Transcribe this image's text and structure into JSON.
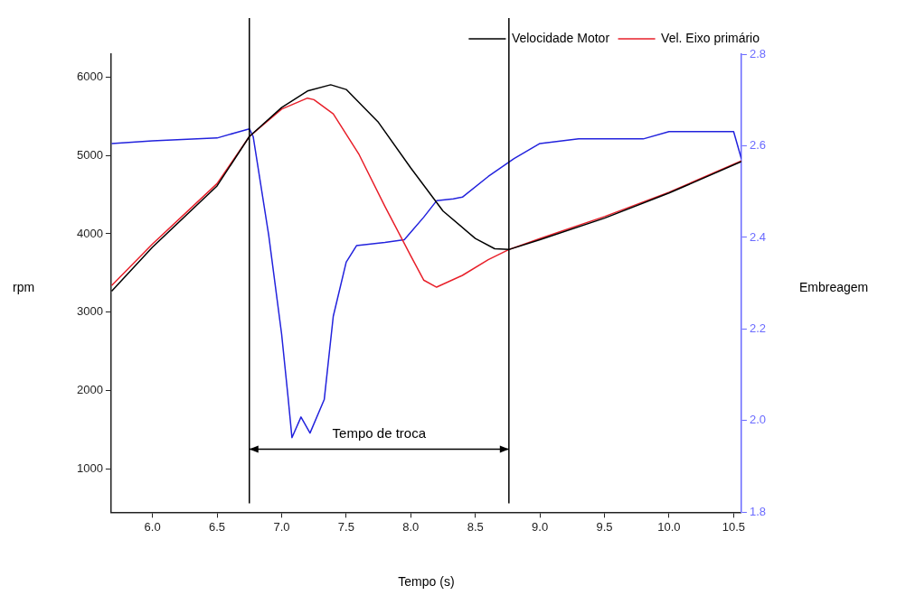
{
  "chart_data": {
    "type": "line",
    "xlabel": "Tempo (s)",
    "ylabel": "rpm",
    "y2label": "Embreagem",
    "xlim": [
      5.68,
      10.56
    ],
    "xticks": [
      {
        "value": 6,
        "label": "6.0"
      },
      6.5,
      {
        "value": 7,
        "label": "7.0"
      },
      7.5,
      {
        "value": 8,
        "label": "8.0"
      },
      8.5,
      {
        "value": 9,
        "label": "9.0"
      },
      9.5,
      {
        "value": 10,
        "label": "10.0"
      },
      10.5
    ],
    "ylim": [
      450,
      6290
    ],
    "yticks": [
      1000,
      2000,
      3000,
      4000,
      5000,
      6000
    ],
    "y2lim": [
      1.8,
      2.8
    ],
    "y2ticks": [
      1.8,
      {
        "value": 2,
        "label": "2.0"
      },
      2.2,
      2.4,
      2.6,
      2.8
    ],
    "grid": false,
    "legend": "top right",
    "marker": "none",
    "line_style": "solid",
    "ref_lines": [
      {
        "axis": "x",
        "value": 6.75,
        "color": "#000000"
      },
      {
        "axis": "x",
        "value": 8.76,
        "color": "#000000"
      }
    ],
    "annotations": [
      "Tempo de troca"
    ],
    "series": [
      {
        "name": "Velocidade Motor",
        "color": "#000000",
        "x": [
          5.684,
          6.0,
          6.5,
          6.75,
          7.0,
          7.2,
          7.38,
          7.5,
          7.75,
          8.0,
          8.25,
          8.5,
          8.65,
          8.76,
          9.0,
          9.5,
          10.0,
          10.56
        ],
        "values": [
          3270,
          3830,
          4610,
          5240,
          5610,
          5820,
          5900,
          5840,
          5420,
          4840,
          4290,
          3940,
          3810,
          3800,
          3925,
          4200,
          4520,
          4920
        ]
      },
      {
        "name": "Vel. Eixo primário",
        "color": "#e8202a",
        "x": [
          5.684,
          6.0,
          6.5,
          6.75,
          7.0,
          7.2,
          7.25,
          7.4,
          7.6,
          7.8,
          8.0,
          8.1,
          8.2,
          8.4,
          8.6,
          8.76,
          9.0,
          9.5,
          10.0,
          10.56
        ],
        "values": [
          3340,
          3870,
          4640,
          5240,
          5590,
          5730,
          5710,
          5530,
          5010,
          4350,
          3720,
          3410,
          3320,
          3470,
          3670,
          3800,
          3940,
          4220,
          4530,
          4930
        ]
      },
      {
        "color": "#2222dd",
        "axis": "y2",
        "x": [
          5.684,
          6.0,
          6.5,
          6.65,
          6.75,
          6.78,
          6.9,
          7.0,
          7.05,
          7.08,
          7.15,
          7.22,
          7.33,
          7.4,
          7.5,
          7.58,
          7.8,
          7.95,
          8.1,
          8.2,
          8.33,
          8.4,
          8.6,
          8.8,
          9.0,
          9.3,
          9.8,
          10.0,
          10.5,
          10.56
        ],
        "values": [
          2.605,
          2.611,
          2.617,
          2.629,
          2.637,
          2.62,
          2.405,
          2.189,
          2.051,
          1.963,
          2.008,
          1.973,
          2.046,
          2.228,
          2.346,
          2.382,
          2.389,
          2.395,
          2.444,
          2.48,
          2.484,
          2.488,
          2.533,
          2.572,
          2.605,
          2.615,
          2.615,
          2.631,
          2.631,
          2.572
        ]
      }
    ]
  }
}
